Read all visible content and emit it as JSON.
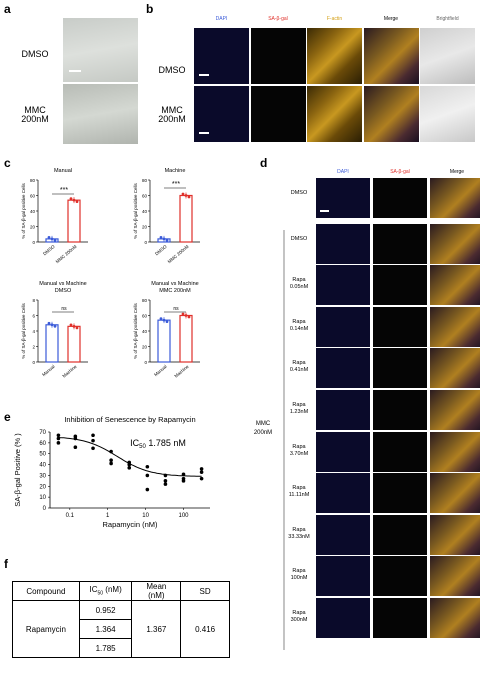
{
  "panels": {
    "a": {
      "letter": "a",
      "rows": [
        "DMSO",
        "MMC\n200nM"
      ]
    },
    "b": {
      "letter": "b",
      "columns": [
        "DAPI",
        "SA-β-gal",
        "F-actin",
        "Merge",
        "Brightfield"
      ],
      "rows": [
        "DMSO",
        "MMC\n200nM"
      ]
    },
    "c": {
      "letter": "c"
    },
    "d": {
      "letter": "d",
      "columns": [
        "DAPI",
        "SA-β-gal",
        "Merge"
      ],
      "row_top": "DMSO",
      "group_label": "MMC\n200nM",
      "rows": [
        "DMSO",
        "Rapa\n0.05nM",
        "Rapa\n0.14nM",
        "Rapa\n0.41nM",
        "Rapa\n1.23nM",
        "Rapa\n3.70nM",
        "Rapa\n11.11nM",
        "Rapa\n33.33nM",
        "Rapa\n100nM",
        "Rapa\n300nM"
      ]
    },
    "e": {
      "letter": "e"
    },
    "f": {
      "letter": "f"
    }
  },
  "colors": {
    "blue": "#3b5bd9",
    "red": "#e0302a",
    "gold": "#d4a017",
    "black": "#000000"
  },
  "chart_data": [
    {
      "type": "bar",
      "title": "Manual",
      "categories": [
        "DMSO",
        "MMC 200nM"
      ],
      "values": [
        4,
        54
      ],
      "ylabel": "% of SA-β-gal positive Cells",
      "ylim": [
        0,
        80
      ],
      "yticks": [
        "0",
        "20",
        "40",
        "60",
        "80"
      ],
      "significance": "***",
      "colors": [
        "#3b5bd9",
        "#e0302a"
      ]
    },
    {
      "type": "bar",
      "title": "Machine",
      "categories": [
        "DMSO",
        "MMC 200nM"
      ],
      "values": [
        4,
        60
      ],
      "ylabel": "% of SA-β-gal positive Cells",
      "ylim": [
        0,
        80
      ],
      "yticks": [
        "0",
        "20",
        "40",
        "60",
        "80"
      ],
      "significance": "***",
      "colors": [
        "#3b5bd9",
        "#e0302a"
      ]
    },
    {
      "type": "bar",
      "title": "Manual vs Machine\nDMSO",
      "categories": [
        "Manual",
        "Machine"
      ],
      "values": [
        4.8,
        4.6
      ],
      "ylabel": "% of SA-β-gal positive Cells",
      "ylim": [
        0,
        8
      ],
      "yticks": [
        "0",
        "2",
        "4",
        "6",
        "8"
      ],
      "significance": "ns",
      "colors": [
        "#3b5bd9",
        "#e0302a"
      ]
    },
    {
      "type": "bar",
      "title": "Manual vs Machine\nMMC 200nM",
      "categories": [
        "Manual",
        "Machine"
      ],
      "values": [
        54,
        60
      ],
      "ylabel": "% of SA-β-gal positive Cells",
      "ylim": [
        0,
        80
      ],
      "yticks": [
        "0",
        "20",
        "40",
        "60",
        "80"
      ],
      "significance": "ns",
      "colors": [
        "#3b5bd9",
        "#e0302a"
      ]
    },
    {
      "type": "scatter",
      "title": "Inhibition of Senescence by Rapamycin",
      "annotation": "IC50 1.785 nM",
      "xlabel": "Rapamycin (nM)",
      "ylabel": "SA-β-gal Positive (% )",
      "xscale": "log",
      "xticks": [
        "0.1",
        "1",
        "10",
        "100"
      ],
      "yticks": [
        "0",
        "10",
        "20",
        "30",
        "40",
        "50",
        "60",
        "70"
      ],
      "ylim": [
        0,
        70
      ],
      "points": [
        [
          0.05,
          60
        ],
        [
          0.05,
          67
        ],
        [
          0.05,
          64
        ],
        [
          0.14,
          66
        ],
        [
          0.14,
          56
        ],
        [
          0.14,
          64
        ],
        [
          0.41,
          62
        ],
        [
          0.41,
          55
        ],
        [
          0.41,
          67
        ],
        [
          1.23,
          44
        ],
        [
          1.23,
          52
        ],
        [
          1.23,
          41
        ],
        [
          3.7,
          42
        ],
        [
          3.7,
          37
        ],
        [
          3.7,
          40
        ],
        [
          11.11,
          38
        ],
        [
          11.11,
          30
        ],
        [
          11.11,
          17
        ],
        [
          33.33,
          22
        ],
        [
          33.33,
          30
        ],
        [
          33.33,
          25
        ],
        [
          100,
          25
        ],
        [
          100,
          31
        ],
        [
          100,
          27
        ],
        [
          300,
          36
        ],
        [
          300,
          33
        ],
        [
          300,
          27
        ]
      ],
      "curve": {
        "top": 66,
        "bottom": 29,
        "ic50": 1.785
      }
    }
  ],
  "table_f": {
    "headers": [
      "Compound",
      "IC50 (nM)",
      "Mean\n(nM)",
      "SD"
    ],
    "compound": "Rapamycin",
    "ic50_values": [
      "0.952",
      "1.364",
      "1.785"
    ],
    "mean": "1.367",
    "sd": "0.416"
  }
}
